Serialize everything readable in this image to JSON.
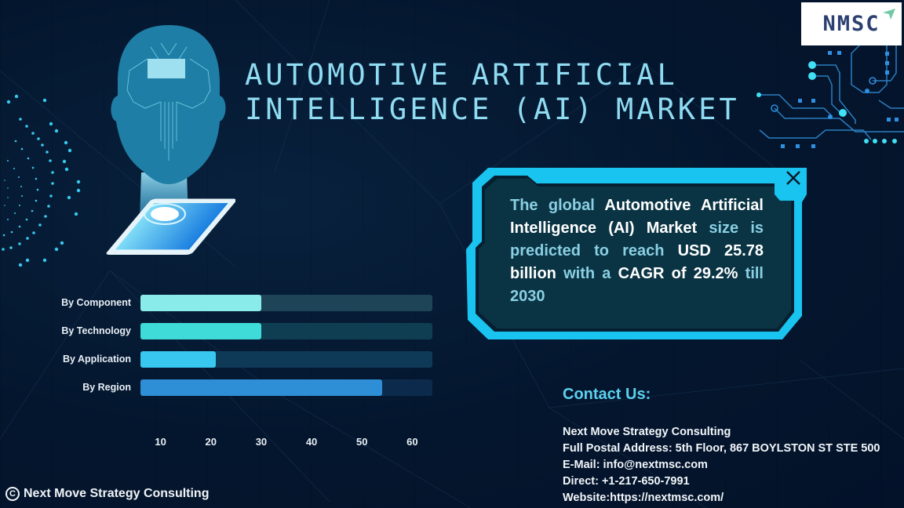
{
  "header": {
    "title_line1": "AUTOMOTIVE ARTIFICIAL",
    "title_line2": "INTELLIGENCE (AI) MARKET",
    "logo_text": "NMSC"
  },
  "info_box": {
    "segments": [
      {
        "text": "The global ",
        "style": "hl"
      },
      {
        "text": "Automotive Artificial Intelligence (AI) Market",
        "style": "wt"
      },
      {
        "text": " size is predicted to reach ",
        "style": "hl"
      },
      {
        "text": "USD 25.78 billion",
        "style": "wt"
      },
      {
        "text": " with a ",
        "style": "hl"
      },
      {
        "text": "CAGR of 29.2%",
        "style": "wt"
      },
      {
        "text": " till 2030",
        "style": "hl"
      }
    ],
    "close_icon": "close-icon"
  },
  "chart_data": {
    "type": "bar",
    "orientation": "horizontal",
    "title": "",
    "xlabel": "",
    "ylabel": "",
    "categories": [
      "By Component",
      "By Technology",
      "By Application",
      "By Region"
    ],
    "values": [
      30,
      30,
      21,
      54
    ],
    "x_ticks": [
      10,
      20,
      30,
      40,
      50,
      60
    ],
    "xlim": [
      6,
      64
    ],
    "grid": false,
    "legend": "none",
    "colors": [
      "#8aecea",
      "#3fdbd8",
      "#38c8ef",
      "#2e8fd6"
    ],
    "track_colors": [
      "#1e4458",
      "#0f3e52",
      "#0e3a58",
      "#0c2b4c"
    ]
  },
  "footer": {
    "copyright_symbol": "C",
    "copyright_text": "Next Move Strategy Consulting"
  },
  "contact": {
    "title": "Contact Us:",
    "lines": [
      "Next Move Strategy Consulting",
      "Full Postal Address: 5th Floor, 867 BOYLSTON ST STE 500",
      "E-Mail: info@nextmsc.com",
      "Direct: +1-217-650-7991",
      "Website:https://nextmsc.com/"
    ]
  },
  "colors": {
    "background": "#04162e",
    "title": "#8fdcf2",
    "accent": "#19c4f0",
    "box_fill": "#0a3444",
    "contact_title": "#5cd0ef"
  }
}
